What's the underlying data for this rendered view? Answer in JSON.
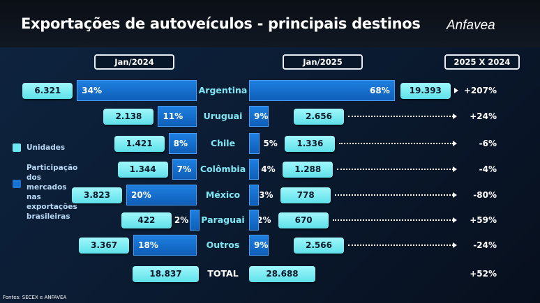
{
  "header": {
    "title": "Exportações de autoveículos - principais destinos",
    "logo": "Anfavea"
  },
  "columns": {
    "left": "Jan/2024",
    "right": "Jan/2025",
    "change": "2025 X 2024"
  },
  "legend": {
    "units": "Unidades",
    "share": "Participação dos mercados nas exportações brasileiras",
    "units_color": "#6ee8f0",
    "share_color": "#1a74d4"
  },
  "footer": "Fontes: SECEX e ANFAVEA",
  "chart_data": {
    "type": "bar",
    "title": "Exportações de autoveículos - principais destinos",
    "categories": [
      "Argentina",
      "Uruguai",
      "Chile",
      "Colômbia",
      "México",
      "Paraguai",
      "Outros"
    ],
    "series": [
      {
        "name": "Jan/2024 Unidades",
        "values": [
          "6.321",
          "2.138",
          "1.421",
          "1.344",
          "3.823",
          "422",
          "3.367"
        ]
      },
      {
        "name": "Jan/2024 Participação (%)",
        "values": [
          34,
          11,
          8,
          7,
          20,
          2,
          18
        ]
      },
      {
        "name": "Jan/2025 Unidades",
        "values": [
          "19.393",
          "2.656",
          "1.336",
          "1.288",
          "778",
          "670",
          "2.566"
        ]
      },
      {
        "name": "Jan/2025 Participação (%)",
        "values": [
          68,
          9,
          5,
          4,
          3,
          2,
          9
        ]
      },
      {
        "name": "2025 X 2024",
        "values": [
          "+207%",
          "+24%",
          "-6%",
          "-4%",
          "-80%",
          "+59%",
          "-24%"
        ]
      }
    ],
    "total": {
      "label": "TOTAL",
      "jan2024": "18.837",
      "jan2025": "28.688",
      "change": "+52%"
    }
  }
}
